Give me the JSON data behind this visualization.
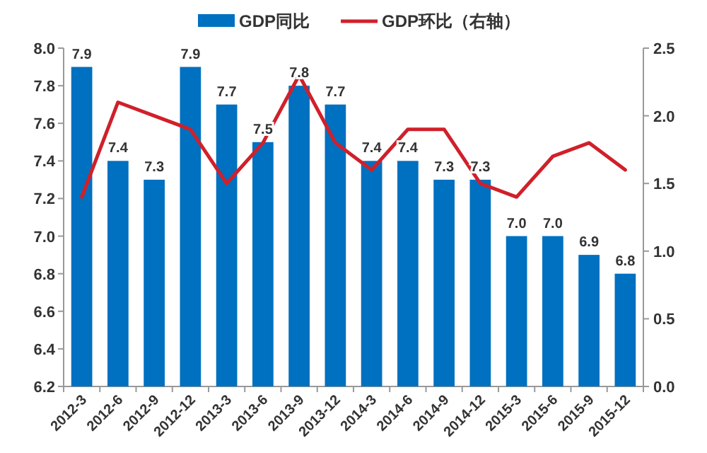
{
  "chart_data": {
    "type": "bar",
    "categories": [
      "2012-3",
      "2012-6",
      "2012-9",
      "2012-12",
      "2013-3",
      "2013-6",
      "2013-9",
      "2013-12",
      "2014-3",
      "2014-6",
      "2014-9",
      "2014-12",
      "2015-3",
      "2015-6",
      "2015-9",
      "2015-12"
    ],
    "series": [
      {
        "name": "GDP同比",
        "type": "bar",
        "color": "#0070c0",
        "values": [
          7.9,
          7.4,
          7.3,
          7.9,
          7.7,
          7.5,
          7.8,
          7.7,
          7.4,
          7.4,
          7.3,
          7.3,
          7.0,
          7.0,
          6.9,
          6.8
        ]
      },
      {
        "name": "GDP环比（右轴）",
        "type": "line",
        "axis": "y2",
        "color": "#d0202a",
        "values": [
          1.4,
          2.1,
          2.0,
          1.9,
          1.5,
          1.8,
          2.3,
          1.8,
          1.6,
          1.9,
          1.9,
          1.5,
          1.4,
          1.7,
          1.8,
          1.6
        ]
      }
    ],
    "ylim": [
      6.2,
      8.0
    ],
    "yticks": [
      6.2,
      6.4,
      6.6,
      6.8,
      {
        "value": 7,
        "label": "7.0"
      },
      7.2,
      7.4,
      7.6,
      7.8,
      {
        "value": 8,
        "label": "8.0"
      }
    ],
    "y2lim": [
      0,
      2.5
    ],
    "y2ticks": [
      {
        "value": 0,
        "label": "0.0"
      },
      0.5,
      {
        "value": 1,
        "label": "1.0"
      },
      1.5,
      {
        "value": 2,
        "label": "2.0"
      },
      2.5
    ],
    "value_labels": [
      "7.9",
      "7.4",
      "7.3",
      "7.9",
      "7.7",
      "7.5",
      "7.8",
      "7.7",
      "7.4",
      "7.4",
      "7.3",
      "7.3",
      "7.0",
      "7.0",
      "6.9",
      "6.8"
    ],
    "legend": "top",
    "grid": false
  }
}
